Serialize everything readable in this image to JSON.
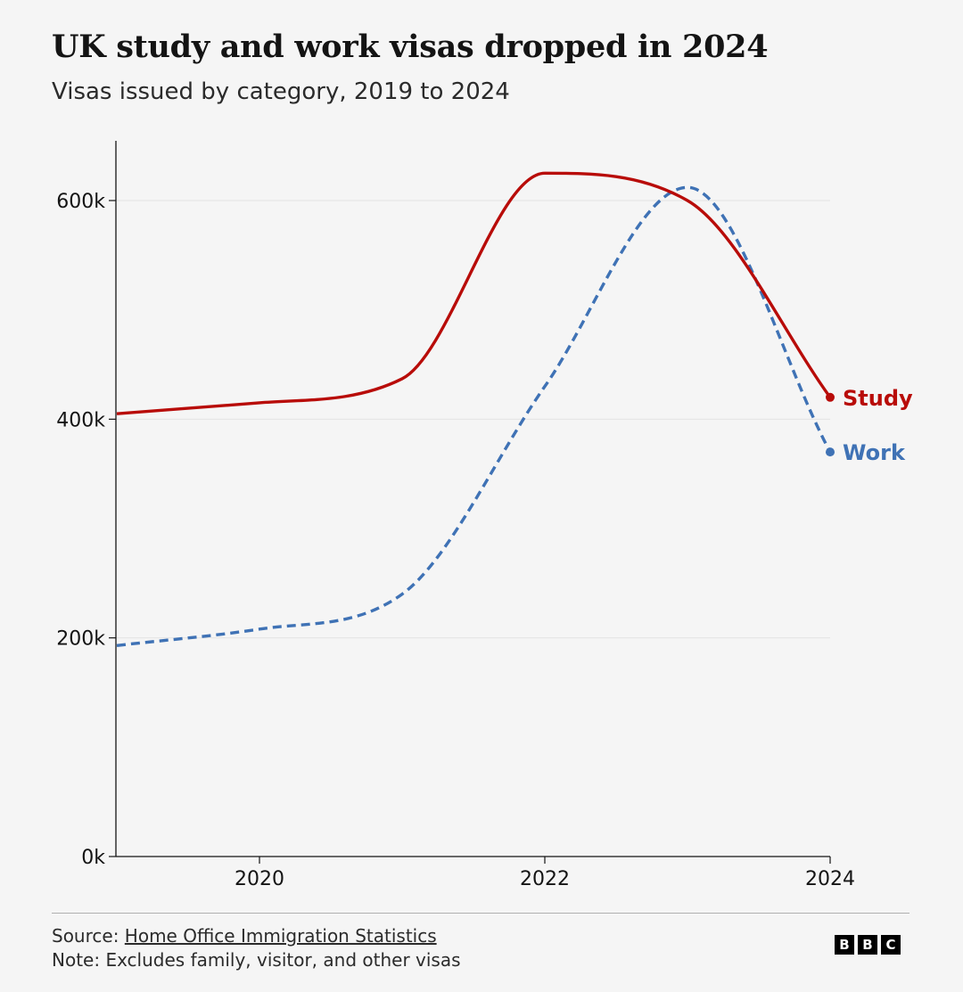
{
  "title": "UK study and work visas dropped in 2024",
  "subtitle": "Visas issued by category, 2019 to 2024",
  "source_prefix": "Source: ",
  "source_link": "Home Office Immigration Statistics",
  "note": "Note: Excludes family, visitor, and other visas",
  "logo_letters": [
    "B",
    "B",
    "C"
  ],
  "chart_data": {
    "type": "line",
    "title": "UK study and work visas dropped in 2024",
    "subtitle": "Visas issued by category, 2019 to 2024",
    "xlabel": "",
    "ylabel": "",
    "x": [
      2019,
      2020,
      2021,
      2022,
      2023,
      2024
    ],
    "xlim": [
      2019,
      2024
    ],
    "ylim": [
      0,
      650000
    ],
    "x_ticks": [
      2020,
      2022,
      2024
    ],
    "x_tick_labels": [
      "2020",
      "2022",
      "2024"
    ],
    "y_ticks": [
      0,
      200000,
      400000,
      600000
    ],
    "y_tick_labels": [
      "0k",
      "200k",
      "400k",
      "600k"
    ],
    "grid": "horizontal",
    "legend": "direct labels at line ends",
    "series": [
      {
        "name": "Study",
        "color": "#b80c09",
        "style": "solid",
        "values": [
          405000,
          415000,
          437000,
          625000,
          600000,
          420000
        ]
      },
      {
        "name": "Work",
        "color": "#3f72b5",
        "style": "dashed",
        "values": [
          193000,
          208000,
          240000,
          430000,
          612000,
          370000
        ]
      }
    ]
  }
}
